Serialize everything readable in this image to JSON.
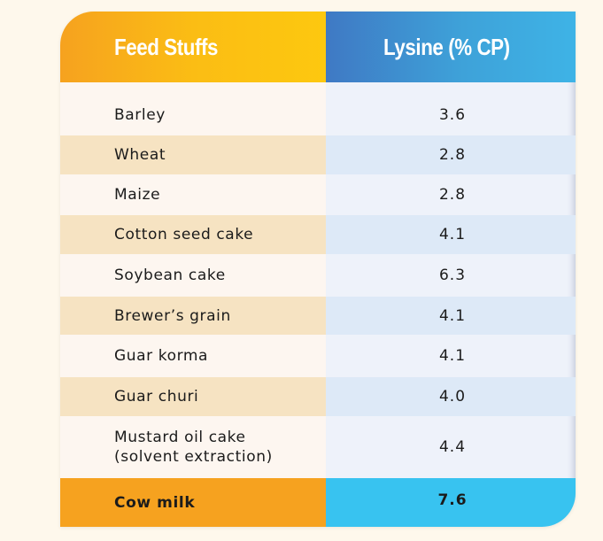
{
  "table": {
    "header": {
      "feed_col": "Feed Stuffs",
      "lysine_col": "Lysine (% CP)"
    },
    "rows": [
      {
        "feed": "Barley",
        "lysine": "3.6"
      },
      {
        "feed": "Wheat",
        "lysine": "2.8"
      },
      {
        "feed": "Maize",
        "lysine": "2.8"
      },
      {
        "feed": "Cotton seed cake",
        "lysine": "4.1"
      },
      {
        "feed": "Soybean cake",
        "lysine": "6.3"
      },
      {
        "feed": "Brewer’s grain",
        "lysine": "4.1"
      },
      {
        "feed": "Guar korma",
        "lysine": "4.1"
      },
      {
        "feed": "Guar churi",
        "lysine": "4.0"
      },
      {
        "feed": "Mustard oil cake\n(solvent extraction)",
        "lysine": "4.4"
      },
      {
        "feed": "Cow milk",
        "lysine": "7.6"
      }
    ]
  },
  "colors": {
    "header_orange": "#f6a21f",
    "header_blue": "#3ea2d9",
    "row_shade_left": "#f6e3c2",
    "row_shade_right": "#dde9f7",
    "highlight_left": "#f6a21f",
    "highlight_right": "#38c3f0"
  }
}
